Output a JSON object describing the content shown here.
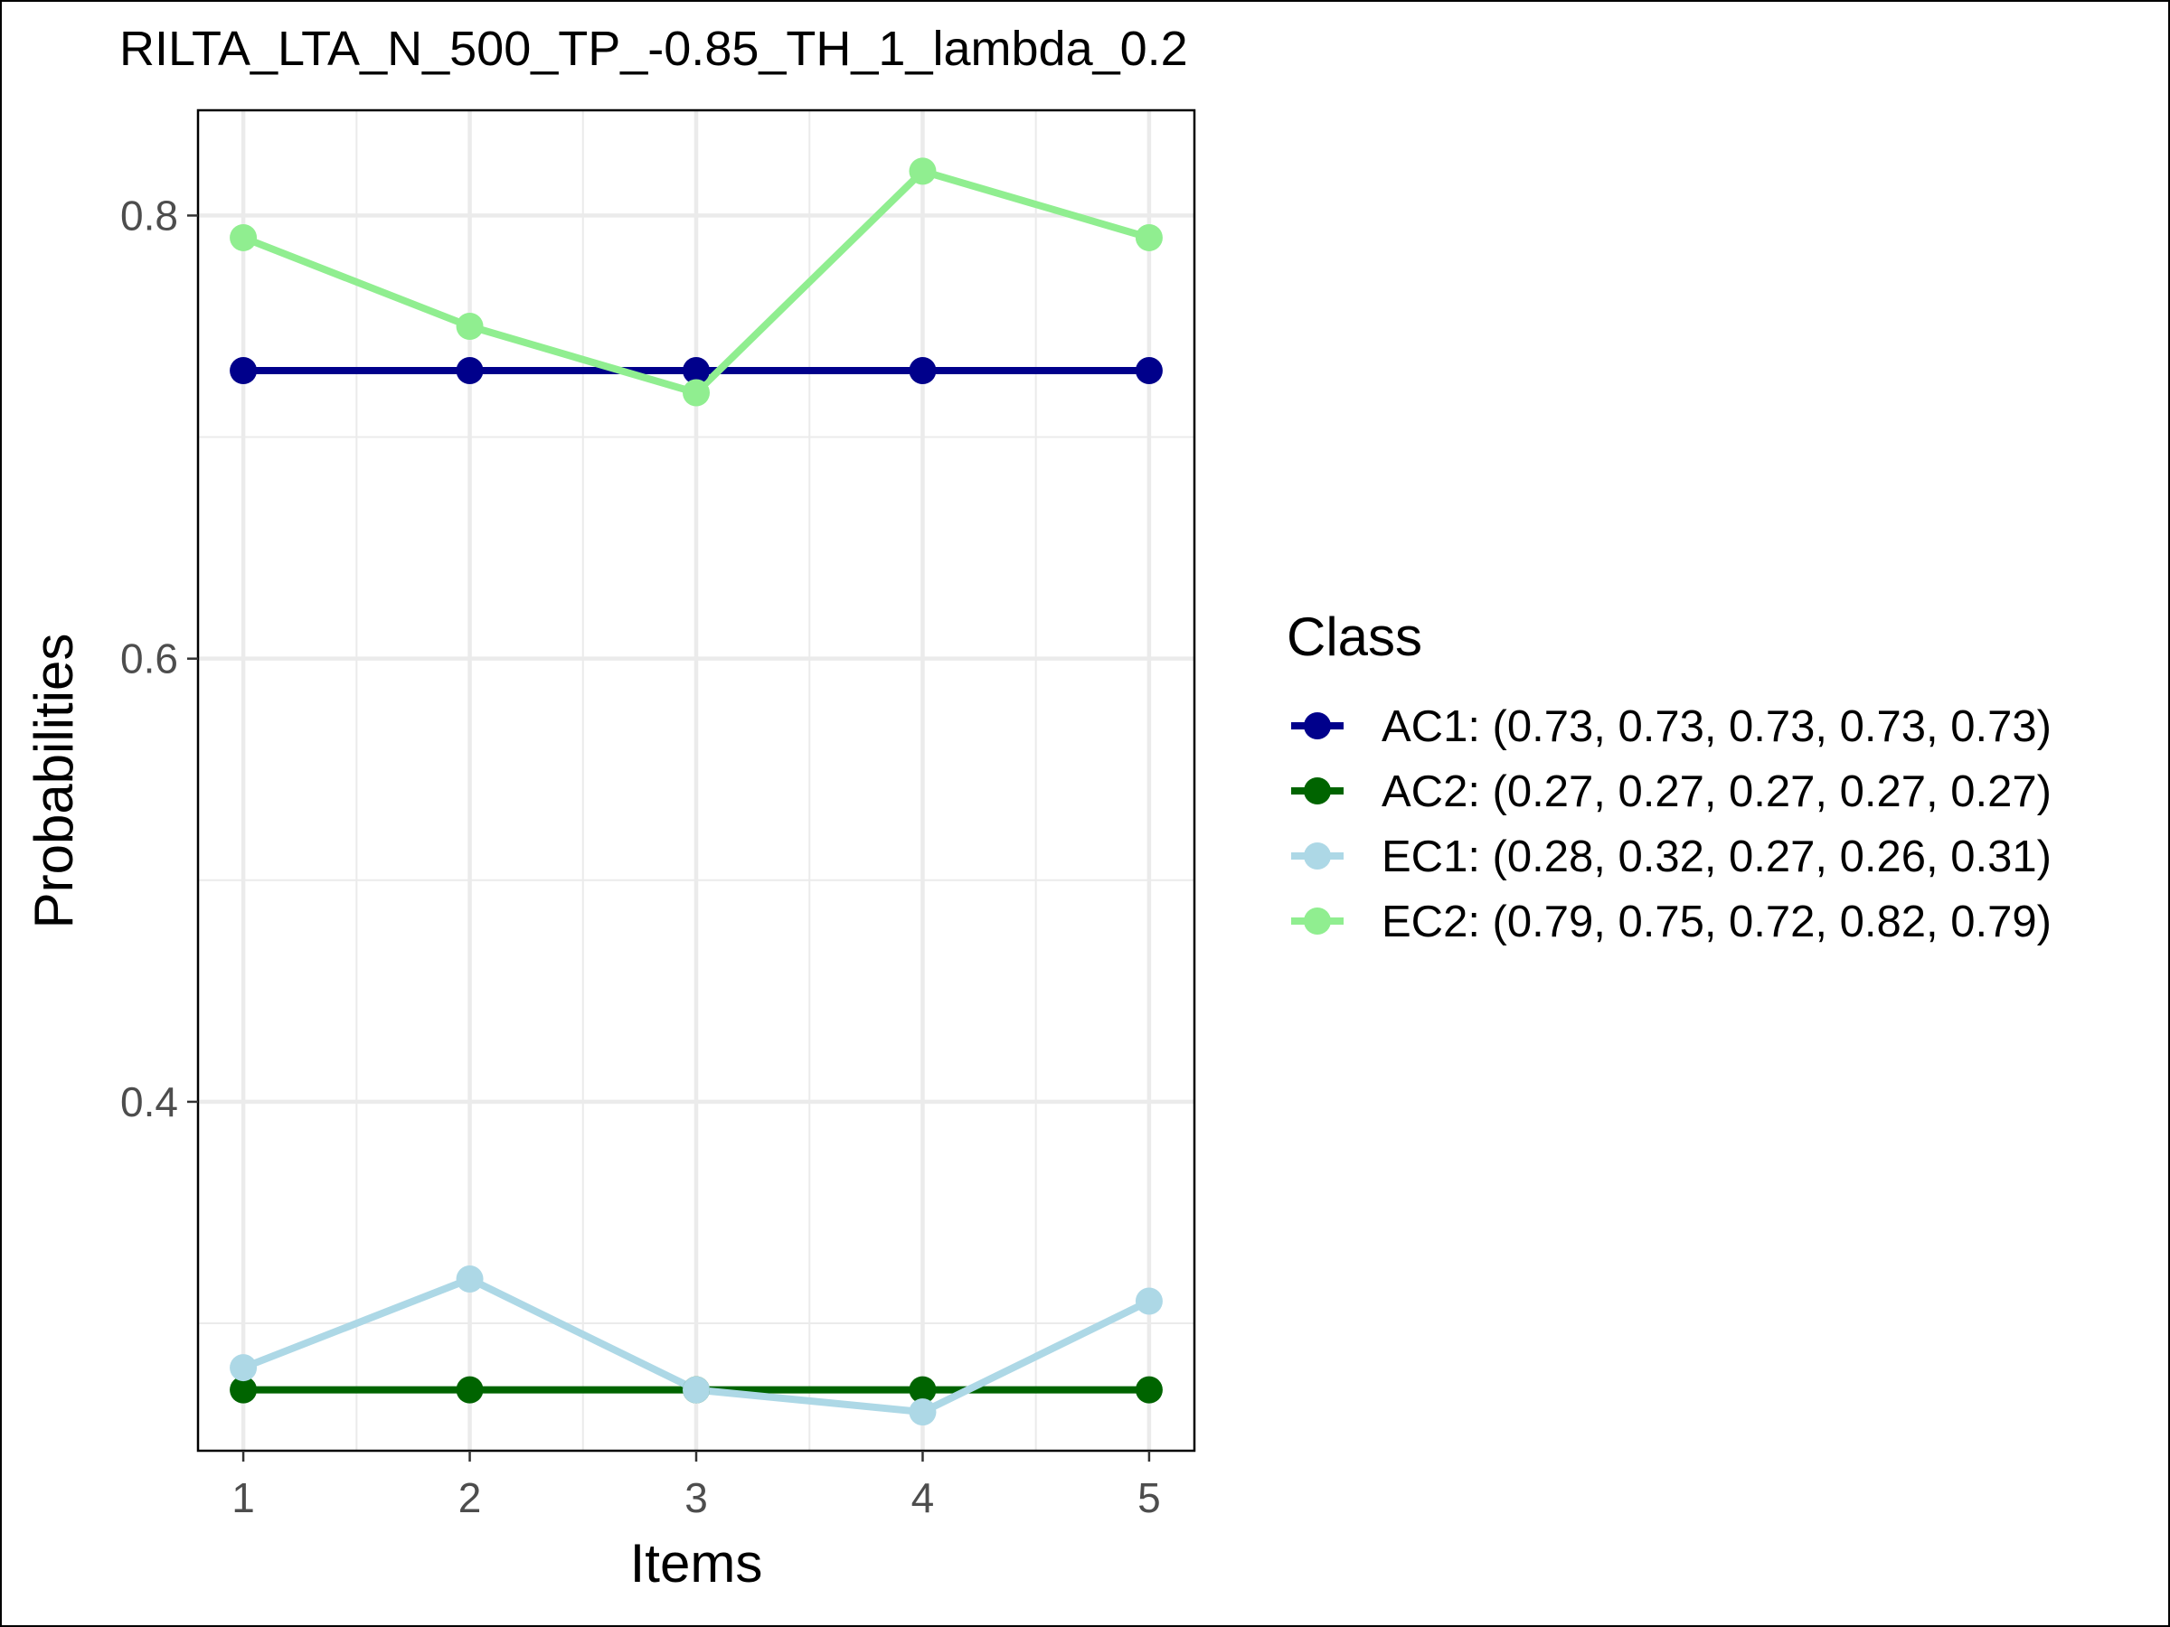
{
  "chart_data": {
    "type": "line",
    "title": "RILTA_LTA_N_500_TP_-0.85_TH_1_lambda_0.2",
    "xlabel": "Items",
    "ylabel": "Probabilities",
    "x": [
      1,
      2,
      3,
      4,
      5
    ],
    "x_ticks": [
      "1",
      "2",
      "3",
      "4",
      "5"
    ],
    "xlim": [
      0.8,
      5.2
    ],
    "ylim": [
      0.2425,
      0.8475
    ],
    "y_ticks": [
      0.4,
      0.6,
      0.8
    ],
    "y_tick_labels": [
      "0.4",
      "0.6",
      "0.8"
    ],
    "grid": true,
    "legend": {
      "title": "Class",
      "position": "right",
      "labels": [
        "AC1: (0.73, 0.73, 0.73, 0.73, 0.73)",
        "AC2: (0.27, 0.27, 0.27, 0.27, 0.27)",
        "EC1: (0.28, 0.32, 0.27, 0.26, 0.31)",
        "EC2: (0.79, 0.75, 0.72, 0.82, 0.79)"
      ]
    },
    "series": [
      {
        "name": "AC1",
        "color": "#00008b",
        "values": [
          0.73,
          0.73,
          0.73,
          0.73,
          0.73
        ]
      },
      {
        "name": "AC2",
        "color": "#006400",
        "values": [
          0.27,
          0.27,
          0.27,
          0.27,
          0.27
        ]
      },
      {
        "name": "EC1",
        "color": "#add8e6",
        "values": [
          0.28,
          0.32,
          0.27,
          0.26,
          0.31
        ]
      },
      {
        "name": "EC2",
        "color": "#90ee90",
        "values": [
          0.79,
          0.75,
          0.72,
          0.82,
          0.79
        ]
      }
    ]
  }
}
